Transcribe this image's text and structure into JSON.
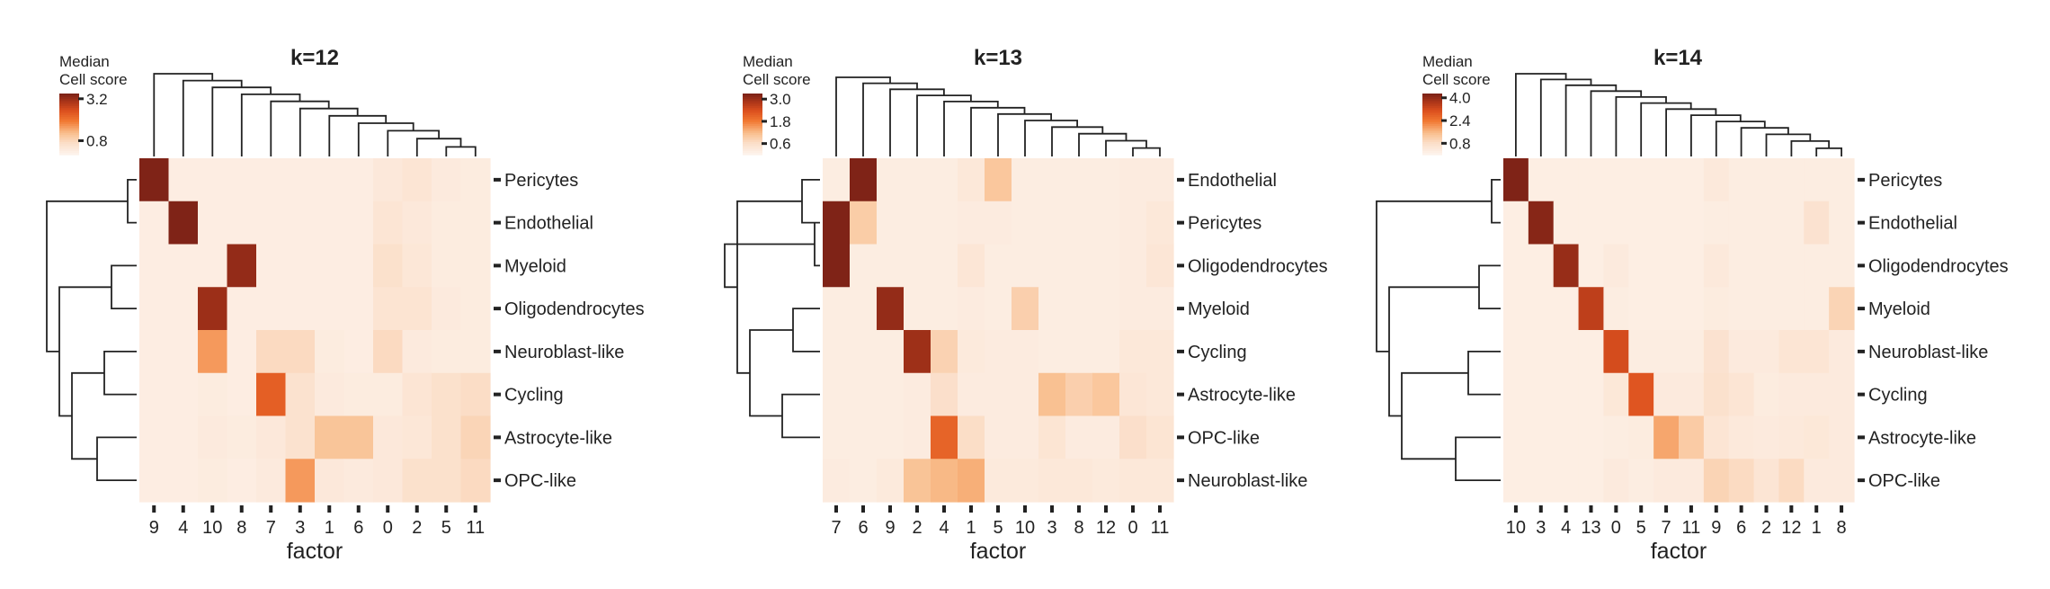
{
  "chart_data": [
    {
      "type": "heatmap",
      "title": "k=12",
      "xlabel": "factor",
      "colorbar": {
        "title_lines": [
          "Median",
          "Cell score"
        ],
        "ticks": [
          3.2,
          0.8
        ],
        "max": 3.5
      },
      "x_categories": [
        "9",
        "4",
        "10",
        "8",
        "7",
        "3",
        "1",
        "6",
        "0",
        "2",
        "5",
        "11"
      ],
      "y_categories": [
        "Pericytes",
        "Endothelial",
        "Myeloid",
        "Oligodendrocytes",
        "Neuroblast-like",
        "Cycling",
        "Astrocyte-like",
        "OPC-like"
      ],
      "values": [
        [
          3.5,
          0.15,
          0.15,
          0.15,
          0.15,
          0.15,
          0.15,
          0.15,
          0.3,
          0.4,
          0.25,
          0.2
        ],
        [
          0.15,
          3.5,
          0.15,
          0.15,
          0.15,
          0.15,
          0.15,
          0.15,
          0.4,
          0.3,
          0.2,
          0.2
        ],
        [
          0.15,
          0.15,
          0.15,
          3.3,
          0.15,
          0.15,
          0.15,
          0.15,
          0.55,
          0.35,
          0.2,
          0.2
        ],
        [
          0.15,
          0.15,
          3.2,
          0.15,
          0.15,
          0.15,
          0.15,
          0.15,
          0.45,
          0.45,
          0.25,
          0.2
        ],
        [
          0.15,
          0.15,
          1.6,
          0.15,
          0.7,
          0.7,
          0.2,
          0.15,
          0.7,
          0.25,
          0.2,
          0.2
        ],
        [
          0.15,
          0.15,
          0.2,
          0.15,
          2.3,
          0.5,
          0.25,
          0.2,
          0.2,
          0.4,
          0.55,
          0.65
        ],
        [
          0.15,
          0.15,
          0.25,
          0.2,
          0.3,
          0.5,
          1.1,
          1.1,
          0.3,
          0.35,
          0.55,
          0.8
        ],
        [
          0.15,
          0.15,
          0.2,
          0.15,
          0.25,
          1.6,
          0.3,
          0.25,
          0.3,
          0.55,
          0.55,
          0.7
        ]
      ]
    },
    {
      "type": "heatmap",
      "title": "k=13",
      "xlabel": "factor",
      "colorbar": {
        "title_lines": [
          "Median",
          "Cell score"
        ],
        "ticks": [
          3.0,
          1.8,
          0.6
        ],
        "max": 3.3
      },
      "x_categories": [
        "7",
        "6",
        "9",
        "2",
        "4",
        "1",
        "5",
        "10",
        "3",
        "8",
        "12",
        "0",
        "11"
      ],
      "y_categories": [
        "Endothelial",
        "Pericytes",
        "Oligodendrocytes",
        "Myeloid",
        "Cycling",
        "Astrocyte-like",
        "OPC-like",
        "Neuroblast-like"
      ],
      "values": [
        [
          0.15,
          3.3,
          0.15,
          0.15,
          0.15,
          0.3,
          1.0,
          0.15,
          0.15,
          0.15,
          0.15,
          0.2,
          0.2
        ],
        [
          3.3,
          0.9,
          0.15,
          0.15,
          0.15,
          0.2,
          0.2,
          0.15,
          0.15,
          0.15,
          0.15,
          0.2,
          0.3
        ],
        [
          3.3,
          0.15,
          0.15,
          0.15,
          0.15,
          0.35,
          0.15,
          0.15,
          0.15,
          0.15,
          0.15,
          0.2,
          0.35
        ],
        [
          0.15,
          0.15,
          3.1,
          0.15,
          0.15,
          0.2,
          0.15,
          0.85,
          0.15,
          0.15,
          0.15,
          0.2,
          0.2
        ],
        [
          0.15,
          0.15,
          0.15,
          3.0,
          0.8,
          0.25,
          0.2,
          0.2,
          0.15,
          0.15,
          0.15,
          0.3,
          0.3
        ],
        [
          0.15,
          0.15,
          0.15,
          0.2,
          0.55,
          0.2,
          0.2,
          0.2,
          1.1,
          0.85,
          1.0,
          0.35,
          0.3
        ],
        [
          0.15,
          0.15,
          0.15,
          0.2,
          2.1,
          0.6,
          0.2,
          0.2,
          0.4,
          0.2,
          0.2,
          0.55,
          0.4
        ],
        [
          0.2,
          0.15,
          0.25,
          1.05,
          1.2,
          1.3,
          0.25,
          0.25,
          0.3,
          0.3,
          0.25,
          0.3,
          0.3
        ]
      ]
    },
    {
      "type": "heatmap",
      "title": "k=14",
      "xlabel": "factor",
      "colorbar": {
        "title_lines": [
          "Median",
          "Cell score"
        ],
        "ticks": [
          4.0,
          2.4,
          0.8
        ],
        "max": 4.3
      },
      "x_categories": [
        "10",
        "3",
        "4",
        "13",
        "0",
        "5",
        "7",
        "11",
        "9",
        "6",
        "2",
        "12",
        "1",
        "8"
      ],
      "y_categories": [
        "Pericytes",
        "Endothelial",
        "Oligodendrocytes",
        "Myeloid",
        "Neuroblast-like",
        "Cycling",
        "Astrocyte-like",
        "OPC-like"
      ],
      "values": [
        [
          4.3,
          0.15,
          0.15,
          0.15,
          0.15,
          0.15,
          0.15,
          0.15,
          0.35,
          0.2,
          0.2,
          0.2,
          0.2,
          0.2
        ],
        [
          0.15,
          4.2,
          0.15,
          0.15,
          0.15,
          0.15,
          0.15,
          0.15,
          0.2,
          0.2,
          0.2,
          0.2,
          0.6,
          0.2
        ],
        [
          0.15,
          0.15,
          4.0,
          0.15,
          0.3,
          0.15,
          0.15,
          0.15,
          0.35,
          0.2,
          0.2,
          0.2,
          0.2,
          0.2
        ],
        [
          0.15,
          0.15,
          0.15,
          3.5,
          0.2,
          0.15,
          0.15,
          0.15,
          0.25,
          0.2,
          0.2,
          0.2,
          0.2,
          1.0
        ],
        [
          0.15,
          0.15,
          0.15,
          0.15,
          3.2,
          0.2,
          0.2,
          0.2,
          0.6,
          0.3,
          0.3,
          0.5,
          0.5,
          0.3
        ],
        [
          0.15,
          0.15,
          0.15,
          0.15,
          0.4,
          3.0,
          0.3,
          0.3,
          0.65,
          0.5,
          0.25,
          0.3,
          0.3,
          0.3
        ],
        [
          0.15,
          0.15,
          0.15,
          0.15,
          0.2,
          0.25,
          1.8,
          1.2,
          0.5,
          0.35,
          0.3,
          0.35,
          0.4,
          0.3
        ],
        [
          0.15,
          0.15,
          0.15,
          0.15,
          0.3,
          0.2,
          0.3,
          0.3,
          1.0,
          0.85,
          0.5,
          0.85,
          0.3,
          0.3
        ]
      ]
    }
  ]
}
